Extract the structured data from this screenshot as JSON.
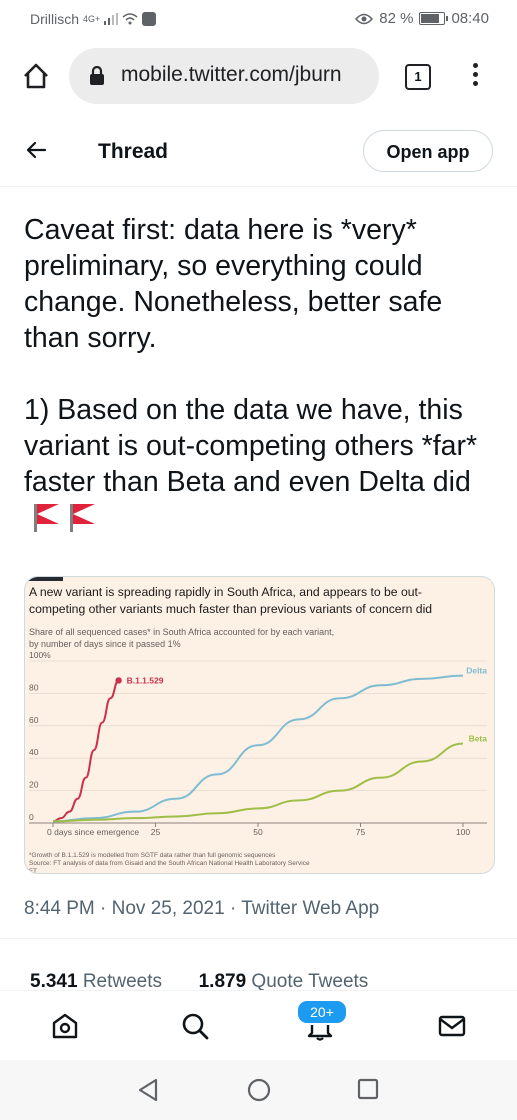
{
  "status_bar": {
    "carrier": "Drillisch",
    "network": "4G+",
    "battery_percent": "82 %",
    "battery_level": 0.82,
    "time": "08:40"
  },
  "browser": {
    "url": "mobile.twitter.com/jburn",
    "tab_count": "1"
  },
  "header": {
    "title": "Thread",
    "open_app_label": "Open app"
  },
  "tweet": {
    "paragraph_1": "Caveat first: data here is *very* preliminary, so everything could change. Nonetheless, better safe than sorry.",
    "paragraph_2": "1) Based on the data we have, this variant is out-competing others *far* faster than Beta and even Delta did",
    "timestamp": "8:44 PM · Nov 25, 2021 · Twitter Web App"
  },
  "stats": {
    "retweets_count": "5.341",
    "retweets_label": "Retweets",
    "quotes_count": "1.879",
    "quotes_label": "Quote Tweets"
  },
  "nav": {
    "notifications_badge": "20+"
  },
  "chart_data": {
    "type": "line",
    "title": "A new variant is spreading rapidly in South Africa, and appears to be out-competing other variants much faster than previous variants of concern did",
    "subtitle_1": "Share of all sequenced cases* in South Africa accounted for by each variant,",
    "subtitle_2": "by number of days since it passed 1%",
    "ylabel": "",
    "xlim": [
      0,
      100
    ],
    "ylim": [
      0,
      100
    ],
    "y_ticks": [
      "100%",
      "80",
      "60",
      "40",
      "20",
      "0"
    ],
    "x_tick_first": "0 days since emergence",
    "x_ticks": [
      "25",
      "50",
      "75",
      "100"
    ],
    "footnote": "*Growth of B.1.1.529 is modelled from SGTF data rather than full genomic sequences",
    "source": "Source: FT analysis of data from Gisaid and the South African National Health Laboratory Service",
    "credit": "FT",
    "series": [
      {
        "name": "B.1.1.529",
        "color": "#c9324a",
        "x": [
          0,
          2,
          4,
          6,
          8,
          10,
          12,
          14,
          16
        ],
        "y": [
          1,
          3,
          7,
          15,
          28,
          45,
          62,
          77,
          88
        ]
      },
      {
        "name": "Delta",
        "color": "#7fbcd2",
        "x": [
          0,
          10,
          20,
          30,
          40,
          50,
          60,
          70,
          80,
          90,
          100
        ],
        "y": [
          1,
          3,
          7,
          15,
          30,
          48,
          64,
          77,
          85,
          89,
          91
        ]
      },
      {
        "name": "Beta",
        "color": "#9fbe48",
        "x": [
          0,
          10,
          20,
          30,
          40,
          50,
          60,
          70,
          80,
          90,
          100
        ],
        "y": [
          1,
          2,
          3,
          4,
          6,
          9,
          14,
          20,
          28,
          38,
          49
        ]
      }
    ]
  }
}
